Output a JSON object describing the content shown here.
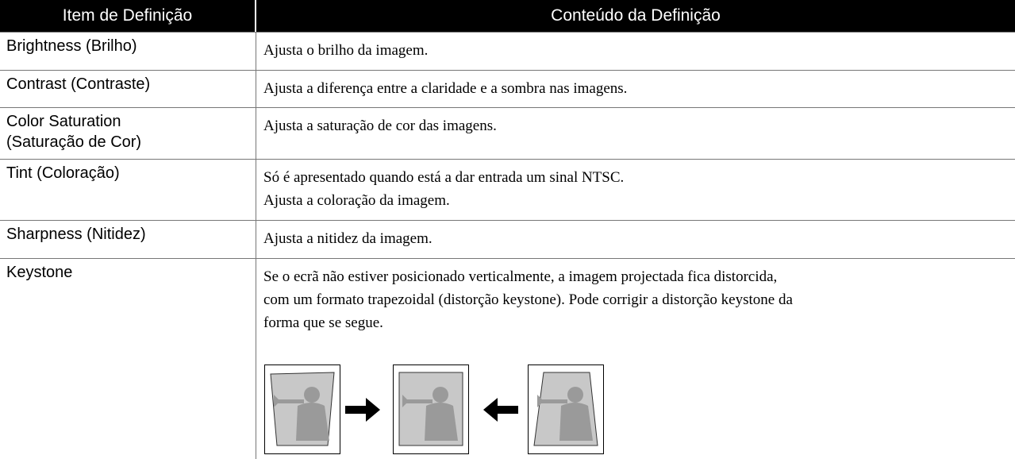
{
  "header": {
    "columns": [
      "Item de Definição",
      "Conteúdo da Definição"
    ]
  },
  "table": {
    "rows": [
      {
        "item": [
          "Brightness (Brilho)"
        ],
        "content": [
          "Ajusta o brilho da imagem."
        ]
      },
      {
        "item": [
          "Contrast (Contraste)"
        ],
        "content": [
          "Ajusta a diferença entre a claridade e a sombra nas imagens."
        ]
      },
      {
        "item": [
          "Color Saturation",
          "(Saturação de Cor)"
        ],
        "content": [
          "Ajusta a saturação de cor das imagens."
        ]
      },
      {
        "item": [
          "Tint (Coloração)"
        ],
        "content": [
          "Só é apresentado quando está a dar entrada um sinal NTSC.",
          "Ajusta a coloração da imagem."
        ]
      },
      {
        "item": [
          "Sharpness (Nitidez)"
        ],
        "content": [
          "Ajusta a nitidez da imagem."
        ]
      },
      {
        "item": [
          "Keystone"
        ],
        "content": [
          "Se o ecrã não estiver posicionado verticalmente, a imagem projectada fica distorcida,",
          "com um formato trapezoidal (distorção keystone). Pode corrigir a distorção keystone da",
          "forma que se segue."
        ]
      }
    ]
  }
}
